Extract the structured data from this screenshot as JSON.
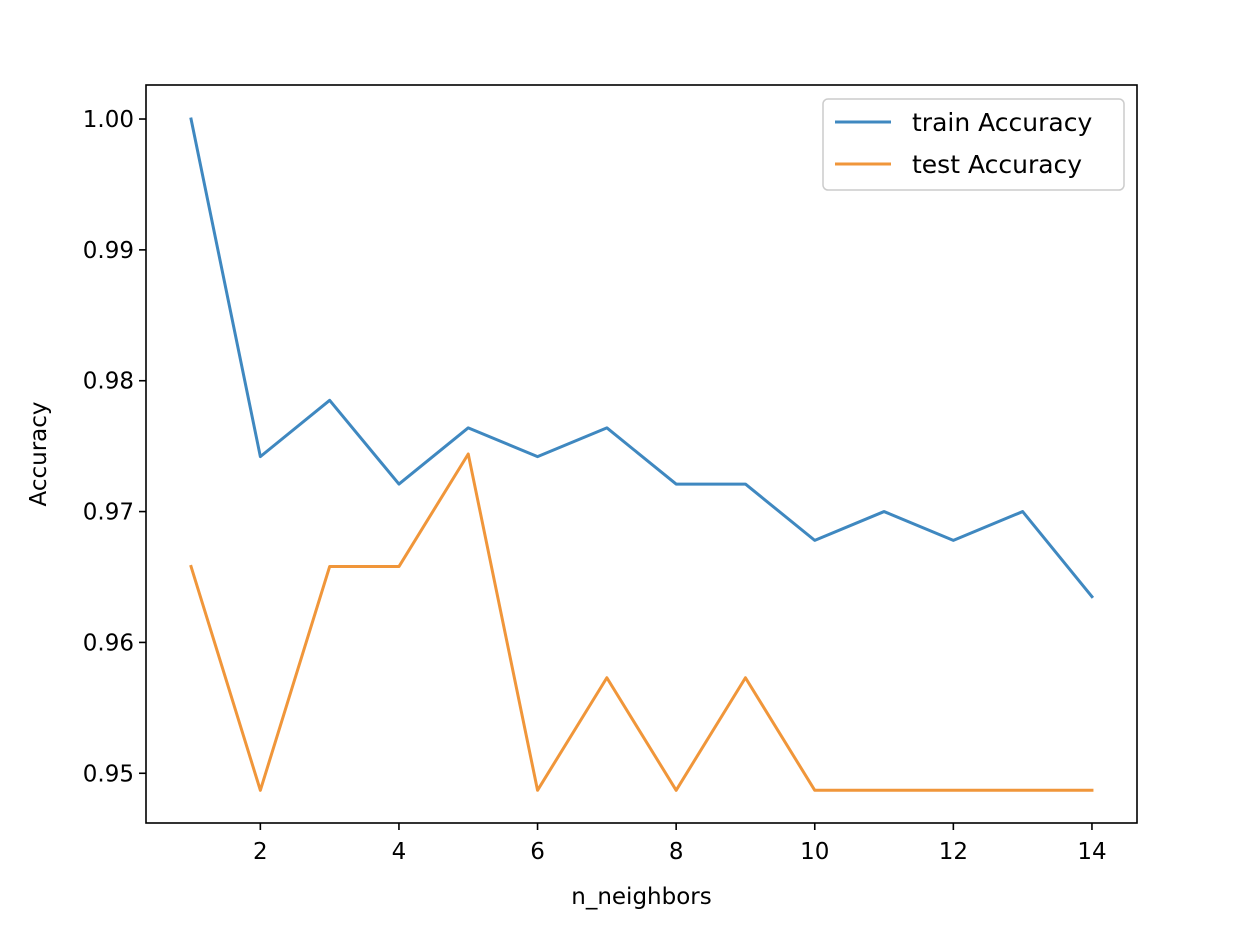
{
  "chart_data": {
    "type": "line",
    "title": "",
    "xlabel": "n_neighbors",
    "ylabel": "Accuracy",
    "x": [
      1,
      2,
      3,
      4,
      5,
      6,
      7,
      8,
      9,
      10,
      11,
      12,
      13,
      14
    ],
    "xlim": [
      0.35,
      14.65
    ],
    "ylim": [
      0.9462,
      1.0026
    ],
    "xticks": [
      2,
      4,
      6,
      8,
      10,
      12,
      14
    ],
    "xtick_labels": [
      "2",
      "4",
      "6",
      "8",
      "10",
      "12",
      "14"
    ],
    "yticks": [
      0.95,
      0.96,
      0.97,
      0.98,
      0.99,
      1.0
    ],
    "ytick_labels": [
      "0.95",
      "0.96",
      "0.97",
      "0.98",
      "0.99",
      "1.00"
    ],
    "grid": false,
    "legend_position": "top-right",
    "series": [
      {
        "name": "train Accuracy",
        "color": "#3f88c0",
        "values": [
          1.0,
          0.9742,
          0.9785,
          0.9721,
          0.9764,
          0.9742,
          0.9764,
          0.9721,
          0.9721,
          0.9678,
          0.97,
          0.9678,
          0.97,
          0.9635
        ]
      },
      {
        "name": "test Accuracy",
        "color": "#f0963a",
        "values": [
          0.9658,
          0.9487,
          0.9658,
          0.9658,
          0.9744,
          0.9487,
          0.9573,
          0.9487,
          0.9573,
          0.9487,
          0.9487,
          0.9487,
          0.9487,
          0.9487
        ]
      }
    ]
  }
}
